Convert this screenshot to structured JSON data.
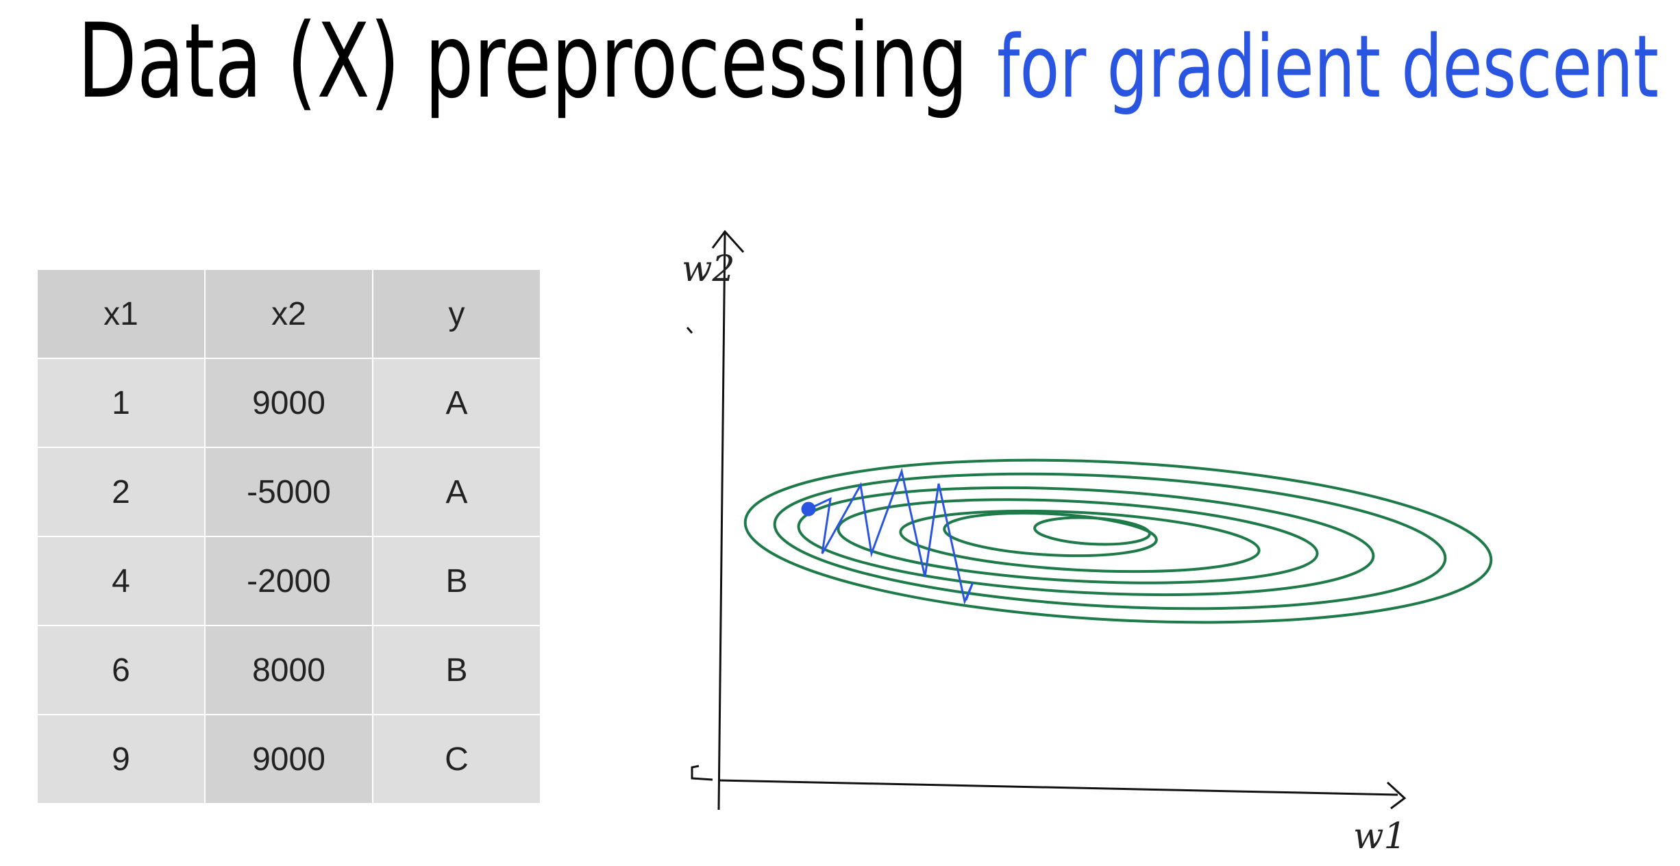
{
  "title": {
    "main": "Data (X) preprocessing",
    "highlight": "for gradient descent"
  },
  "table": {
    "header": [
      "x1",
      "x2",
      "y"
    ],
    "rows": [
      [
        1,
        9000,
        "A"
      ],
      [
        2,
        -5000,
        "A"
      ],
      [
        4,
        -2000,
        "B"
      ],
      [
        6,
        8000,
        "B"
      ],
      [
        9,
        9000,
        "C"
      ]
    ]
  },
  "plot": {
    "y_axis_label": "w2",
    "x_axis_label": "w1"
  }
}
